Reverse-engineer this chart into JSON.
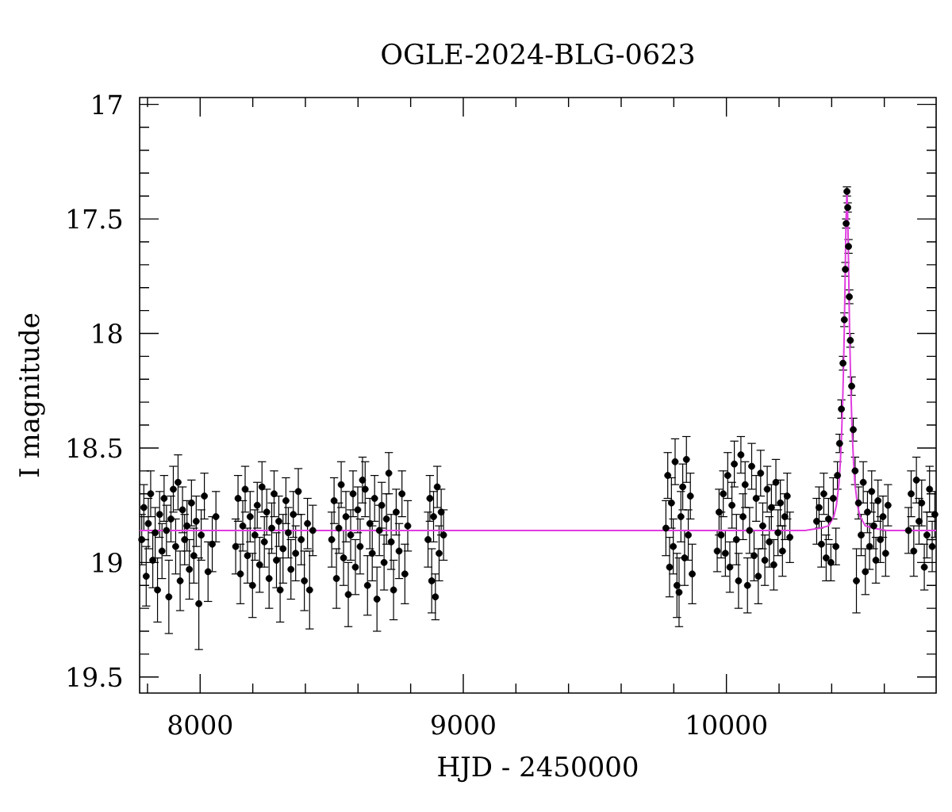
{
  "chart_data": {
    "type": "scatter",
    "title": "OGLE-2024-BLG-0623",
    "xlabel": "HJD - 2450000",
    "ylabel": "I magnitude",
    "xlim": [
      7770,
      10797
    ],
    "ylim": [
      19.57,
      16.97
    ],
    "xticks": [
      {
        "value": 7800,
        "label": null
      },
      8000,
      {
        "value": 8200,
        "label": null
      },
      {
        "value": 8400,
        "label": null
      },
      {
        "value": 8600,
        "label": null
      },
      {
        "value": 8800,
        "label": null
      },
      9000,
      {
        "value": 9200,
        "label": null
      },
      {
        "value": 9400,
        "label": null
      },
      {
        "value": 9600,
        "label": null
      },
      {
        "value": 9800,
        "label": null
      },
      10000,
      {
        "value": 10200,
        "label": null
      },
      {
        "value": 10400,
        "label": null
      },
      {
        "value": 10600,
        "label": null
      }
    ],
    "yticks": [
      17,
      {
        "value": 17.1,
        "label": null
      },
      {
        "value": 17.2,
        "label": null
      },
      {
        "value": 17.3,
        "label": null
      },
      {
        "value": 17.4,
        "label": null
      },
      17.5,
      {
        "value": 17.6,
        "label": null
      },
      {
        "value": 17.7,
        "label": null
      },
      {
        "value": 17.8,
        "label": null
      },
      {
        "value": 17.9,
        "label": null
      },
      18,
      {
        "value": 18.1,
        "label": null
      },
      {
        "value": 18.2,
        "label": null
      },
      {
        "value": 18.3,
        "label": null
      },
      {
        "value": 18.4,
        "label": null
      },
      18.5,
      {
        "value": 18.6,
        "label": null
      },
      {
        "value": 18.7,
        "label": null
      },
      {
        "value": 18.8,
        "label": null
      },
      {
        "value": 18.9,
        "label": null
      },
      19,
      {
        "value": 19.1,
        "label": null
      },
      {
        "value": 19.2,
        "label": null
      },
      {
        "value": 19.3,
        "label": null
      },
      {
        "value": 19.4,
        "label": null
      },
      19.5
    ],
    "series": [
      {
        "color": "#000000",
        "marker": "circle",
        "x": [
          7778,
          7786,
          7795,
          7803,
          7812,
          7820,
          7829,
          7838,
          7846,
          7855,
          7863,
          7872,
          7881,
          7889,
          7898,
          7907,
          7916,
          7924,
          7933,
          7941,
          7950,
          7959,
          7967,
          7976,
          7985,
          7995,
          8004,
          8016,
          8030,
          8046,
          8060,
          8135,
          8144,
          8153,
          8162,
          8171,
          8180,
          8190,
          8199,
          8208,
          8217,
          8226,
          8235,
          8244,
          8253,
          8262,
          8272,
          8281,
          8290,
          8299,
          8304,
          8315,
          8326,
          8335,
          8345,
          8354,
          8363,
          8373,
          8384,
          8396,
          8408,
          8416,
          8428,
          8500,
          8509,
          8518,
          8527,
          8536,
          8545,
          8554,
          8563,
          8572,
          8581,
          8590,
          8599,
          8608,
          8617,
          8627,
          8636,
          8645,
          8654,
          8663,
          8672,
          8681,
          8690,
          8699,
          8708,
          8717,
          8726,
          8735,
          8745,
          8756,
          8767,
          8778,
          8789,
          8866,
          8873,
          8880,
          8887,
          8894,
          8901,
          8908,
          8916,
          8925,
          9770,
          9777,
          9784,
          9791,
          9798,
          9805,
          9812,
          9820,
          9827,
          9834,
          9841,
          9848,
          9855,
          9863,
          9870,
          9965,
          9972,
          9980,
          9988,
          9996,
          10005,
          10013,
          10021,
          10030,
          10038,
          10046,
          10055,
          10063,
          10071,
          10080,
          10088,
          10096,
          10105,
          10113,
          10121,
          10130,
          10138,
          10146,
          10155,
          10163,
          10171,
          10180,
          10188,
          10196,
          10205,
          10213,
          10222,
          10231,
          10241,
          10343,
          10352,
          10361,
          10370,
          10379,
          10388,
          10397,
          10406,
          10416,
          10422,
          10430,
          10437,
          10443,
          10448,
          10452,
          10455,
          10458,
          10461,
          10464,
          10467,
          10471,
          10476,
          10482,
          10489,
          10494,
          10502,
          10512,
          10520,
          10528,
          10536,
          10544,
          10552,
          10560,
          10568,
          10576,
          10585,
          10595,
          10605,
          10614,
          10692,
          10702,
          10712,
          10722,
          10732,
          10742,
          10752,
          10762,
          10772,
          10782,
          10792
        ],
        "values": [
          18.9,
          18.76,
          19.06,
          18.83,
          18.7,
          18.99,
          18.87,
          19.12,
          18.79,
          18.95,
          18.72,
          18.86,
          19.15,
          18.81,
          18.68,
          18.93,
          18.65,
          19.08,
          18.77,
          18.9,
          18.84,
          19.03,
          18.74,
          18.97,
          18.82,
          19.18,
          18.88,
          18.71,
          19.04,
          18.92,
          18.8,
          18.93,
          18.72,
          19.05,
          18.84,
          18.68,
          18.97,
          18.8,
          19.1,
          18.88,
          18.75,
          19.01,
          18.67,
          18.91,
          18.78,
          19.07,
          18.85,
          18.7,
          18.99,
          18.82,
          19.12,
          18.94,
          18.73,
          18.87,
          19.03,
          18.79,
          18.96,
          18.69,
          18.9,
          19.08,
          18.83,
          19.12,
          18.86,
          18.9,
          18.73,
          19.07,
          18.85,
          18.66,
          18.98,
          18.8,
          19.14,
          18.88,
          18.7,
          19.02,
          18.77,
          18.93,
          18.64,
          18.68,
          19.1,
          18.83,
          18.96,
          18.72,
          19.16,
          18.86,
          18.75,
          19.0,
          18.81,
          18.61,
          18.91,
          19.12,
          18.78,
          18.95,
          18.7,
          19.05,
          18.84,
          18.9,
          18.72,
          19.08,
          18.8,
          19.15,
          18.67,
          18.96,
          18.78,
          18.88,
          18.85,
          18.62,
          19.02,
          18.74,
          18.93,
          18.56,
          19.1,
          19.13,
          18.8,
          18.67,
          18.98,
          18.55,
          18.88,
          18.71,
          19.05,
          18.95,
          18.78,
          18.88,
          18.7,
          18.96,
          18.62,
          19.02,
          18.75,
          18.57,
          18.9,
          19.08,
          18.53,
          18.8,
          18.66,
          19.1,
          18.86,
          18.58,
          18.97,
          18.72,
          19.06,
          18.61,
          18.84,
          18.99,
          18.68,
          18.91,
          18.76,
          19.01,
          18.65,
          18.87,
          18.74,
          18.95,
          18.8,
          18.71,
          18.89,
          18.82,
          18.76,
          18.92,
          18.7,
          18.98,
          18.81,
          19.0,
          18.72,
          18.93,
          18.62,
          18.48,
          18.33,
          18.13,
          17.94,
          17.72,
          17.52,
          17.38,
          17.45,
          17.62,
          17.84,
          18.03,
          18.23,
          18.42,
          18.6,
          19.08,
          18.74,
          18.88,
          18.65,
          19.04,
          18.78,
          18.93,
          18.69,
          18.84,
          18.99,
          18.73,
          18.9,
          18.8,
          18.96,
          18.75,
          18.86,
          18.7,
          18.95,
          18.64,
          18.82,
          18.74,
          19.02,
          18.88,
          18.68,
          18.93,
          18.79
        ],
        "errors": [
          0.11,
          0.1,
          0.13,
          0.11,
          0.1,
          0.12,
          0.11,
          0.14,
          0.1,
          0.12,
          0.1,
          0.11,
          0.16,
          0.1,
          0.1,
          0.12,
          0.12,
          0.13,
          0.1,
          0.11,
          0.11,
          0.13,
          0.1,
          0.12,
          0.11,
          0.2,
          0.11,
          0.1,
          0.13,
          0.12,
          0.11,
          0.12,
          0.1,
          0.13,
          0.11,
          0.1,
          0.12,
          0.11,
          0.14,
          0.11,
          0.1,
          0.12,
          0.11,
          0.11,
          0.1,
          0.13,
          0.11,
          0.1,
          0.12,
          0.11,
          0.14,
          0.15,
          0.1,
          0.11,
          0.13,
          0.1,
          0.12,
          0.1,
          0.11,
          0.13,
          0.11,
          0.17,
          0.11,
          0.12,
          0.1,
          0.13,
          0.11,
          0.1,
          0.12,
          0.11,
          0.14,
          0.11,
          0.1,
          0.12,
          0.1,
          0.12,
          0.1,
          0.12,
          0.13,
          0.11,
          0.12,
          0.1,
          0.14,
          0.11,
          0.1,
          0.12,
          0.11,
          0.09,
          0.12,
          0.13,
          0.1,
          0.12,
          0.1,
          0.13,
          0.11,
          0.12,
          0.1,
          0.14,
          0.11,
          0.1,
          0.09,
          0.12,
          0.1,
          0.11,
          0.12,
          0.1,
          0.13,
          0.11,
          0.12,
          0.1,
          0.14,
          0.15,
          0.11,
          0.1,
          0.12,
          0.1,
          0.11,
          0.1,
          0.13,
          0.09,
          0.1,
          0.1,
          0.1,
          0.1,
          0.1,
          0.11,
          0.1,
          0.1,
          0.11,
          0.12,
          0.08,
          0.1,
          0.1,
          0.12,
          0.1,
          0.1,
          0.11,
          0.1,
          0.12,
          0.1,
          0.1,
          0.11,
          0.1,
          0.11,
          0.1,
          0.11,
          0.1,
          0.1,
          0.1,
          0.11,
          0.1,
          0.1,
          0.11,
          0.1,
          0.09,
          0.1,
          0.09,
          0.1,
          0.09,
          0.08,
          0.09,
          0.08,
          0.06,
          0.04,
          0.04,
          0.03,
          0.03,
          0.03,
          0.02,
          0.02,
          0.02,
          0.03,
          0.03,
          0.03,
          0.04,
          0.05,
          0.06,
          0.14,
          0.07,
          0.09,
          0.09,
          0.1,
          0.09,
          0.1,
          0.09,
          0.1,
          0.1,
          0.09,
          0.1,
          0.09,
          0.1,
          0.09,
          0.1,
          0.1,
          0.11,
          0.1,
          0.1,
          0.1,
          0.1,
          0.1,
          0.1,
          0.11,
          0.1
        ]
      },
      {
        "type": "line",
        "color": "#e03ce0",
        "x": [
          7770,
          10300,
          10358,
          10388,
          10408,
          10418,
          10423,
          10428,
          10433,
          10438,
          10442,
          10445,
          10448,
          10450,
          10452,
          10454,
          10456,
          10458,
          10460,
          10462,
          10464,
          10466,
          10468,
          10471,
          10474,
          10478,
          10483,
          10488,
          10498,
          10508,
          10528,
          10558,
          10608,
          10797
        ],
        "values": [
          18.86,
          18.86,
          18.85,
          18.84,
          18.8,
          18.75,
          18.7,
          18.65,
          18.56,
          18.43,
          18.29,
          18.15,
          17.98,
          17.84,
          17.69,
          17.55,
          17.44,
          17.38,
          17.44,
          17.55,
          17.69,
          17.84,
          17.98,
          18.15,
          18.29,
          18.43,
          18.56,
          18.65,
          18.75,
          18.8,
          18.84,
          18.85,
          18.86,
          18.86
        ]
      }
    ]
  }
}
